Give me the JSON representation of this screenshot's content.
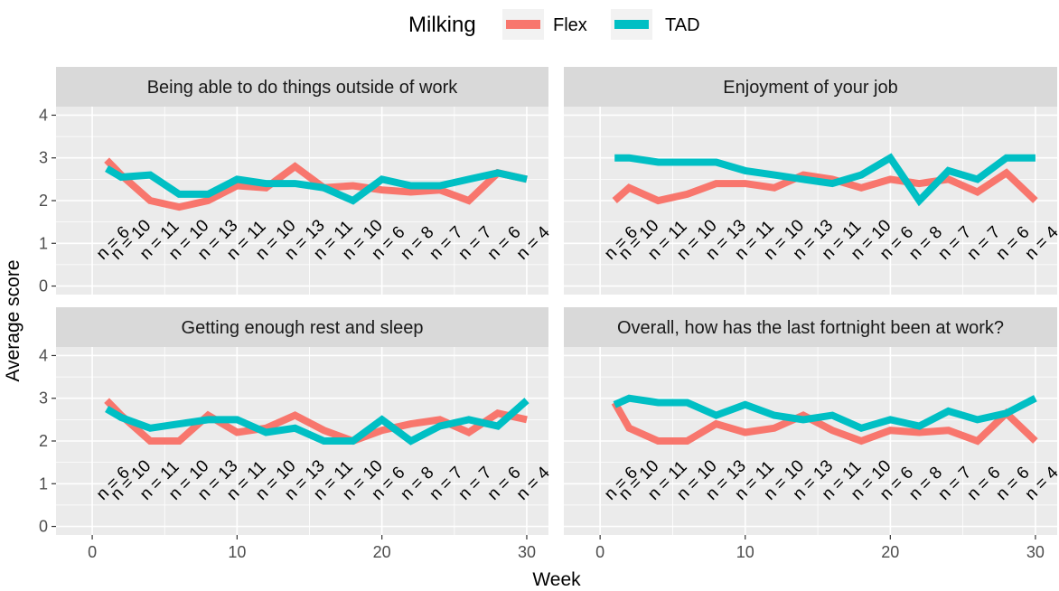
{
  "legend": {
    "title": "Milking",
    "items": [
      {
        "label": "Flex",
        "color": "#F8766D"
      },
      {
        "label": "TAD",
        "color": "#00BFC4"
      }
    ]
  },
  "chart_data": {
    "type": "line",
    "xlabel": "Week",
    "ylabel": "Average score",
    "xlim": [
      -2.5,
      31.5
    ],
    "ylim": [
      -0.2,
      4.2
    ],
    "xticks": [
      0,
      10,
      20,
      30
    ],
    "yticks": [
      0,
      1,
      2,
      3,
      4
    ],
    "weeks": [
      1,
      2,
      4,
      6,
      8,
      10,
      12,
      14,
      16,
      18,
      20,
      22,
      24,
      26,
      28,
      30
    ],
    "n_labels": [
      "n = 6",
      "n = 10",
      "n = 11",
      "n = 10",
      "n = 13",
      "n = 11",
      "n = 10",
      "n = 13",
      "n = 11",
      "n = 10",
      "n = 6",
      "n = 8",
      "n = 7",
      "n = 7",
      "n = 6",
      "n = 4"
    ],
    "n_weeks": [
      1,
      2,
      4,
      6,
      8,
      10,
      12,
      14,
      16,
      18,
      20,
      22,
      24,
      26,
      28,
      30
    ],
    "panels": [
      {
        "title": "Being able to do things outside of work",
        "series": [
          {
            "name": "Flex",
            "values": [
              2.95,
              2.6,
              2.0,
              1.85,
              2.0,
              2.35,
              2.3,
              2.8,
              2.3,
              2.35,
              2.25,
              2.2,
              2.25,
              2.0,
              2.65,
              2.5
            ]
          },
          {
            "name": "TAD",
            "values": [
              2.75,
              2.55,
              2.6,
              2.15,
              2.15,
              2.5,
              2.4,
              2.4,
              2.3,
              2.0,
              2.5,
              2.35,
              2.35,
              2.5,
              2.65,
              2.5
            ]
          }
        ],
        "n_labels": [
          "n = 6",
          "n = 10",
          "n = 11",
          "n = 10",
          "n = 13",
          "n = 11",
          "n = 10",
          "n = 13",
          "n = 11",
          "n = 10",
          "n = 6",
          "n = 8",
          "n = 7",
          "n = 7",
          "n = 6",
          "n = 4"
        ]
      },
      {
        "title": "Enjoyment of your job",
        "series": [
          {
            "name": "Flex",
            "values": [
              2.0,
              2.3,
              2.0,
              2.15,
              2.4,
              2.4,
              2.3,
              2.6,
              2.5,
              2.3,
              2.5,
              2.4,
              2.5,
              2.2,
              2.65,
              2.0
            ]
          },
          {
            "name": "TAD",
            "values": [
              3.0,
              3.0,
              2.9,
              2.9,
              2.9,
              2.7,
              2.6,
              2.5,
              2.4,
              2.6,
              3.0,
              2.0,
              2.7,
              2.5,
              3.0,
              3.0
            ]
          }
        ],
        "n_labels": [
          "n = 6",
          "n = 10",
          "n = 11",
          "n = 10",
          "n = 13",
          "n = 11",
          "n = 10",
          "n = 13",
          "n = 11",
          "n = 10",
          "n = 6",
          "n = 8",
          "n = 7",
          "n = 7",
          "n = 6",
          "n = 4"
        ]
      },
      {
        "title": "Getting enough rest and sleep",
        "series": [
          {
            "name": "Flex",
            "values": [
              2.95,
              2.6,
              2.0,
              2.0,
              2.6,
              2.2,
              2.3,
              2.6,
              2.25,
              2.0,
              2.25,
              2.4,
              2.5,
              2.2,
              2.65,
              2.5
            ]
          },
          {
            "name": "TAD",
            "values": [
              2.75,
              2.55,
              2.3,
              2.4,
              2.5,
              2.5,
              2.2,
              2.3,
              2.0,
              2.0,
              2.5,
              2.0,
              2.35,
              2.5,
              2.35,
              2.95
            ]
          }
        ],
        "n_labels": [
          "n = 6",
          "n = 10",
          "n = 11",
          "n = 10",
          "n = 13",
          "n = 11",
          "n = 10",
          "n = 13",
          "n = 11",
          "n = 10",
          "n = 6",
          "n = 8",
          "n = 7",
          "n = 7",
          "n = 6",
          "n = 4"
        ]
      },
      {
        "title": "Overall, how has the last fortnight been at work?",
        "series": [
          {
            "name": "Flex",
            "values": [
              2.9,
              2.3,
              2.0,
              2.0,
              2.4,
              2.2,
              2.3,
              2.6,
              2.25,
              2.0,
              2.25,
              2.2,
              2.25,
              2.0,
              2.65,
              2.0
            ]
          },
          {
            "name": "TAD",
            "values": [
              2.85,
              3.0,
              2.9,
              2.9,
              2.6,
              2.85,
              2.6,
              2.5,
              2.6,
              2.3,
              2.5,
              2.35,
              2.7,
              2.5,
              2.65,
              3.0
            ]
          }
        ],
        "n_labels": [
          "n = 6",
          "n = 10",
          "n = 11",
          "n = 10",
          "n = 13",
          "n = 11",
          "n = 10",
          "n = 13",
          "n = 11",
          "n = 10",
          "n = 6",
          "n = 8",
          "n = 7",
          "n = 6",
          "n = 6",
          "n = 4"
        ]
      }
    ]
  }
}
